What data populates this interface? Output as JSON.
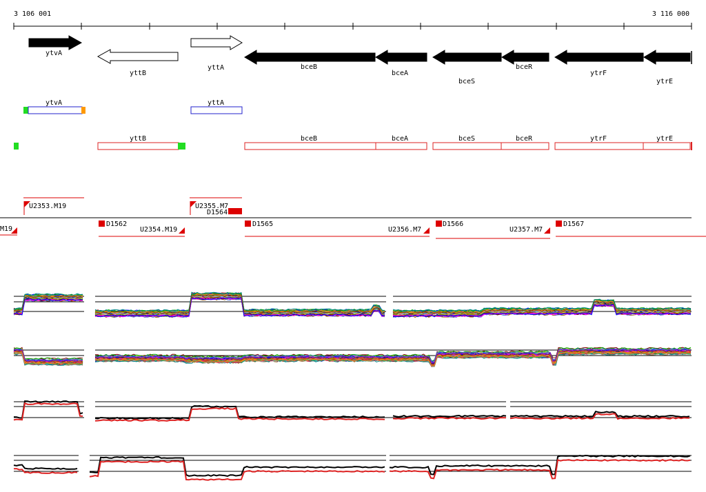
{
  "ruler": {
    "start_label": "3 106 001",
    "end_label": "3 116 000"
  },
  "genes": [
    {
      "name": "ytvA",
      "strand": "+",
      "fill": "black"
    },
    {
      "name": "yttB",
      "strand": "-",
      "fill": "white"
    },
    {
      "name": "yttA",
      "strand": "+",
      "fill": "white"
    },
    {
      "name": "bceB",
      "strand": "-",
      "fill": "black"
    },
    {
      "name": "bceA",
      "strand": "-",
      "fill": "black"
    },
    {
      "name": "bceS",
      "strand": "-",
      "fill": "black"
    },
    {
      "name": "bceR",
      "strand": "-",
      "fill": "black"
    },
    {
      "name": "ytrF",
      "strand": "-",
      "fill": "black"
    },
    {
      "name": "ytrE",
      "strand": "-",
      "fill": "black"
    }
  ],
  "plus_transcripts": [
    {
      "name": "ytvA",
      "color": "#2222cc"
    },
    {
      "name": "yttA",
      "color": "#2222cc"
    }
  ],
  "minus_transcripts": [
    {
      "name": "yttB"
    },
    {
      "name": "bceB"
    },
    {
      "name": "bceA"
    },
    {
      "name": "bceS"
    },
    {
      "name": "bceR"
    },
    {
      "name": "ytrF"
    },
    {
      "name": "ytrE"
    }
  ],
  "segments_upper": [
    {
      "label": "U2353.M19"
    },
    {
      "label": "U2355.M7"
    },
    {
      "label": "D1564"
    }
  ],
  "segments_lower": [
    {
      "label": "M19"
    },
    {
      "label": "D1562"
    },
    {
      "label": "U2354.M19"
    },
    {
      "label": "D1565"
    },
    {
      "label": "U2356.M7"
    },
    {
      "label": "D1566"
    },
    {
      "label": "U2357.M7"
    },
    {
      "label": "D1567"
    }
  ],
  "colors": {
    "plus_strand": "#2222cc",
    "minus_strand": "#dd2222",
    "start_marker": "#22dd22",
    "end_marker": "#ff9900",
    "segment_marker": "#dd0000"
  }
}
